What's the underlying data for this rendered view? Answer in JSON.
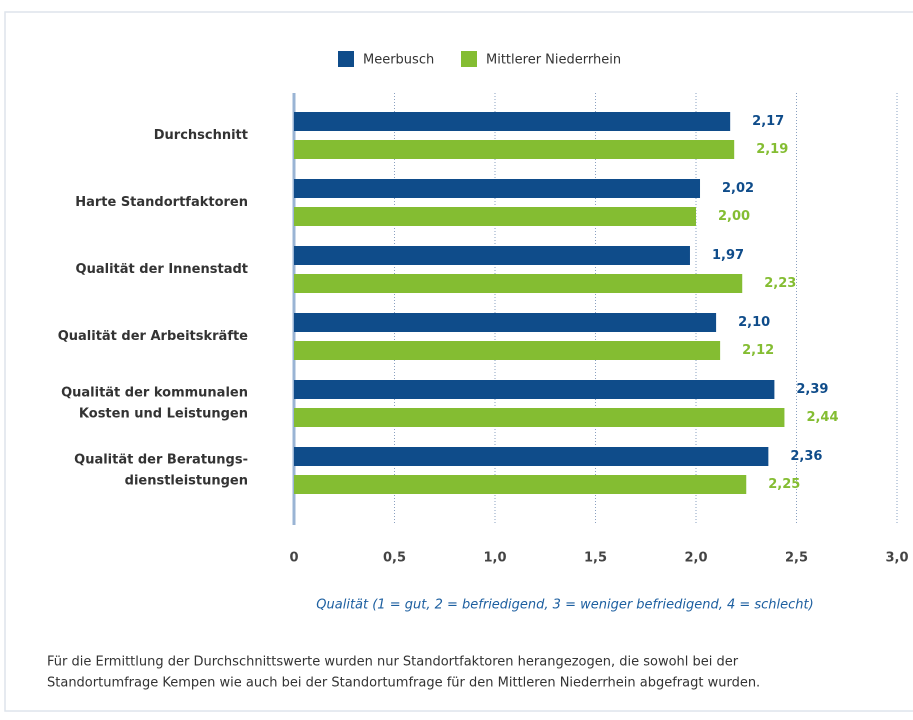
{
  "chart_data": {
    "type": "bar",
    "orientation": "horizontal",
    "categories": [
      [
        "Durchschnitt"
      ],
      [
        "Harte Standortfaktoren"
      ],
      [
        "Qualität der Innenstadt"
      ],
      [
        "Qualität der Arbeitskräfte"
      ],
      [
        "Qualität der kommunalen",
        "Kosten und Leistungen"
      ],
      [
        "Qualität der Beratungs-",
        "dienstleistungen"
      ]
    ],
    "series": [
      {
        "name": "Meerbusch",
        "color": "#0f4c8a",
        "values": [
          2.17,
          2.02,
          1.97,
          2.1,
          2.39,
          2.36
        ],
        "value_labels": [
          "2,17",
          "2,02",
          "1,97",
          "2,10",
          "2,39",
          "2,36"
        ]
      },
      {
        "name": "Mittlerer Niederrhein",
        "color": "#84bd32",
        "values": [
          2.19,
          2.0,
          2.23,
          2.12,
          2.44,
          2.25
        ],
        "value_labels": [
          "2,19",
          "2,00",
          "2,23",
          "2,12",
          "2,44",
          "2,25"
        ]
      }
    ],
    "xlim": [
      0,
      3.0
    ],
    "xticks": [
      0,
      {
        "value": 0.5,
        "label": "0,5"
      },
      {
        "value": 1.0,
        "label": "1,0"
      },
      {
        "value": 1.5,
        "label": "1,5"
      },
      {
        "value": 2.0,
        "label": "2,0"
      },
      {
        "value": 2.5,
        "label": "2,5"
      },
      {
        "value": 3.0,
        "label": "3,0"
      }
    ],
    "grid": true,
    "legend": "top",
    "x_label": "Qualität (1 = gut, 2 = befriedigend, 3 = weniger befriedigend, 4 = schlecht)",
    "note": [
      "Für die Ermittlung der Durchschnittswerte wurden nur Standortfaktoren herangezogen, die sowohl bei der",
      "Standortumfrage Kempen wie auch bei der Standortumfrage für den Mittleren Niederrhein abgefragt wurden."
    ]
  }
}
